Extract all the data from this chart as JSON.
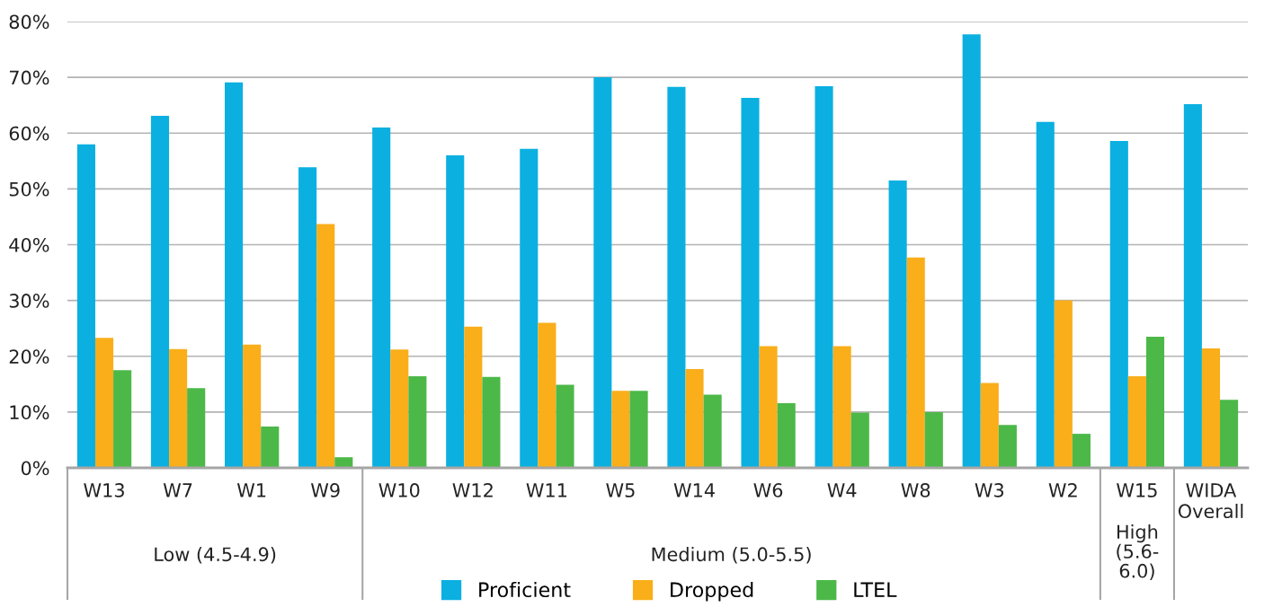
{
  "chart_data": {
    "type": "bar",
    "categories": [
      "W13",
      "W7",
      "W1",
      "W9",
      "W10",
      "W12",
      "W11",
      "W5",
      "W14",
      "W6",
      "W4",
      "W8",
      "W3",
      "W2",
      "W15",
      "WIDA Overall"
    ],
    "series": [
      {
        "name": "Proficient",
        "color": "#0bb0e1",
        "values": [
          58.0,
          63.1,
          69.1,
          53.9,
          61.0,
          56.0,
          57.2,
          70.0,
          68.3,
          66.3,
          68.4,
          51.5,
          77.7,
          62.0,
          58.6,
          65.2
        ]
      },
      {
        "name": "Dropped",
        "color": "#f9ae1a",
        "values": [
          23.3,
          21.3,
          22.1,
          43.7,
          21.2,
          25.3,
          26.0,
          13.8,
          17.7,
          21.8,
          21.8,
          37.7,
          15.2,
          30.0,
          16.4,
          21.4
        ]
      },
      {
        "name": "LTEL",
        "color": "#4cb848",
        "values": [
          17.5,
          14.3,
          7.4,
          1.9,
          16.4,
          16.3,
          14.9,
          13.8,
          13.1,
          11.6,
          9.9,
          10.0,
          7.7,
          6.1,
          23.5,
          12.2
        ]
      }
    ],
    "ylim": [
      0,
      80
    ],
    "yticks": [
      {
        "value": 0,
        "label": "0%"
      },
      {
        "value": 10,
        "label": "10%"
      },
      {
        "value": 20,
        "label": "20%"
      },
      {
        "value": 30,
        "label": "30%"
      },
      {
        "value": 40,
        "label": "40%"
      },
      {
        "value": 50,
        "label": "50%"
      },
      {
        "value": 60,
        "label": "60%"
      },
      {
        "value": 70,
        "label": "70%"
      },
      {
        "value": 80,
        "label": "80%"
      }
    ],
    "annotations": [
      "Low (4.5-4.9)",
      "Medium (5.0-5.5)",
      "High (5.6-6.0)"
    ],
    "grid": "y",
    "legend": "bottom"
  }
}
